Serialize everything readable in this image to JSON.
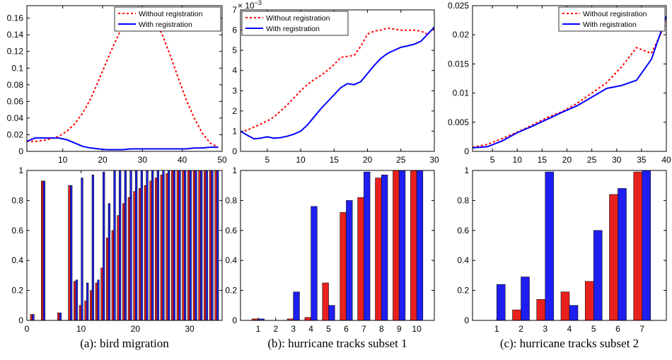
{
  "chart_data": [
    {
      "type": "line",
      "legend": "upper right",
      "xlim": [
        1,
        50
      ],
      "xticks": [
        10,
        20,
        30,
        40,
        50
      ],
      "ylim": [
        0,
        0.175
      ],
      "yticks": [
        0,
        0.02,
        0.04,
        0.06,
        0.08,
        0.1,
        0.12,
        0.14,
        0.16
      ],
      "x": [
        1,
        3,
        5,
        7,
        9,
        11,
        13,
        15,
        17,
        19,
        21,
        23,
        25,
        27,
        29,
        31,
        33,
        35,
        37,
        39,
        41,
        43,
        45,
        47,
        49
      ],
      "series": [
        {
          "name": "Without registration",
          "color": "#ff0000",
          "style": "dotted",
          "values": [
            0.012,
            0.012,
            0.013,
            0.015,
            0.018,
            0.024,
            0.033,
            0.046,
            0.063,
            0.085,
            0.108,
            0.13,
            0.15,
            0.165,
            0.173,
            0.17,
            0.16,
            0.14,
            0.115,
            0.088,
            0.062,
            0.04,
            0.022,
            0.01,
            0.005
          ]
        },
        {
          "name": "With registration",
          "color": "#0000ff",
          "style": "solid",
          "values": [
            0.012,
            0.016,
            0.016,
            0.016,
            0.016,
            0.014,
            0.01,
            0.006,
            0.004,
            0.003,
            0.002,
            0.002,
            0.002,
            0.003,
            0.003,
            0.003,
            0.003,
            0.003,
            0.003,
            0.003,
            0.003,
            0.004,
            0.004,
            0.005,
            0.005
          ]
        }
      ]
    },
    {
      "type": "line",
      "legend": "upper left",
      "y_multiplier": {
        "base": "× 10",
        "exponent": "−3"
      },
      "xlim": [
        1,
        30
      ],
      "xticks": [
        5,
        10,
        15,
        20,
        25,
        30
      ],
      "ylim": [
        0,
        7
      ],
      "yticks": [
        0,
        1,
        2,
        3,
        4,
        5,
        6,
        7
      ],
      "x": [
        1,
        2,
        3,
        4,
        5,
        6,
        7,
        8,
        9,
        10,
        11,
        12,
        13,
        14,
        15,
        16,
        17,
        18,
        19,
        20,
        21,
        22,
        23,
        24,
        25,
        26,
        27,
        28,
        29,
        30
      ],
      "series": [
        {
          "name": "Without registration",
          "color": "#ff0000",
          "style": "dotted",
          "values": [
            0.95,
            1.05,
            1.2,
            1.35,
            1.5,
            1.7,
            2.0,
            2.3,
            2.65,
            3.0,
            3.3,
            3.55,
            3.75,
            4.0,
            4.3,
            4.65,
            4.7,
            4.75,
            5.2,
            5.8,
            5.95,
            6.0,
            6.1,
            6.05,
            6.0,
            6.0,
            6.0,
            5.95,
            5.8,
            6.1
          ]
        },
        {
          "name": "With registration",
          "color": "#0000ff",
          "style": "solid",
          "values": [
            1.0,
            0.8,
            0.62,
            0.65,
            0.72,
            0.65,
            0.68,
            0.75,
            0.85,
            1.0,
            1.3,
            1.7,
            2.1,
            2.45,
            2.8,
            3.15,
            3.35,
            3.3,
            3.45,
            3.85,
            4.25,
            4.6,
            4.85,
            5.0,
            5.15,
            5.22,
            5.3,
            5.45,
            5.8,
            6.15
          ]
        }
      ]
    },
    {
      "type": "line",
      "legend": "upper right",
      "xlim": [
        1,
        40
      ],
      "xticks": [
        5,
        10,
        15,
        20,
        25,
        30,
        35,
        40
      ],
      "ylim": [
        0,
        0.025
      ],
      "yticks": [
        0,
        0.005,
        0.01,
        0.015,
        0.02,
        0.025
      ],
      "x": [
        1,
        4,
        7,
        10,
        13,
        16,
        19,
        22,
        25,
        28,
        31,
        34,
        37,
        40
      ],
      "series": [
        {
          "name": "Without registration",
          "color": "#ff0000",
          "style": "dotted",
          "values": [
            0.0007,
            0.0012,
            0.0022,
            0.0033,
            0.0045,
            0.0058,
            0.0068,
            0.0082,
            0.01,
            0.0118,
            0.0145,
            0.0178,
            0.0168,
            0.0222
          ]
        },
        {
          "name": "With registration",
          "color": "#0000ff",
          "style": "solid",
          "values": [
            0.0006,
            0.0008,
            0.0018,
            0.0032,
            0.0043,
            0.0055,
            0.0067,
            0.0078,
            0.0093,
            0.0108,
            0.0113,
            0.0122,
            0.0158,
            0.0232
          ]
        }
      ]
    },
    {
      "type": "bar",
      "caption": "(a): bird migration",
      "xlim": [
        0,
        36
      ],
      "xticks": [
        0,
        10,
        20,
        30
      ],
      "ylim": [
        0,
        1
      ],
      "yticks": [
        0,
        0.2,
        0.4,
        0.6,
        0.8,
        1
      ],
      "x": [
        1,
        2,
        3,
        4,
        5,
        6,
        7,
        8,
        9,
        10,
        11,
        12,
        13,
        14,
        15,
        16,
        17,
        18,
        19,
        20,
        21,
        22,
        23,
        24,
        25,
        26,
        27,
        28,
        29,
        30,
        31,
        32,
        33,
        34,
        35
      ],
      "series": [
        {
          "color": "#e8201e",
          "values": [
            0.04,
            0,
            0.93,
            0,
            0,
            0.05,
            0,
            0.9,
            0.26,
            0.1,
            0.13,
            0.2,
            0.25,
            0.35,
            0.55,
            0.6,
            0.7,
            0.78,
            0.82,
            0.86,
            0.88,
            0.9,
            0.93,
            0.95,
            0.97,
            0.98,
            1,
            1,
            1,
            1,
            1,
            1,
            1,
            1,
            1
          ]
        },
        {
          "color": "#1e1ef0",
          "values": [
            0.04,
            0,
            0.93,
            0,
            0,
            0.05,
            0,
            0.9,
            0.27,
            0.95,
            0.25,
            0.97,
            0.27,
            0.99,
            0.78,
            1,
            1,
            1,
            1,
            1,
            1,
            1,
            1,
            1,
            1,
            1,
            1,
            1,
            1,
            1,
            1,
            1,
            1,
            1,
            1
          ]
        }
      ]
    },
    {
      "type": "bar",
      "caption": "(b): hurricane tracks subset 1",
      "ylim": [
        0,
        1
      ],
      "yticks": [
        0,
        0.2,
        0.4,
        0.6,
        0.8,
        1
      ],
      "categories": [
        "1",
        "2",
        "3",
        "4",
        "5",
        "6",
        "7",
        "8",
        "9",
        "10"
      ],
      "series": [
        {
          "color": "#e8201e",
          "values": [
            0.01,
            0,
            0.01,
            0.02,
            0.25,
            0.72,
            0.82,
            0.95,
            1,
            1
          ]
        },
        {
          "color": "#1e1ef0",
          "values": [
            0.01,
            0,
            0.19,
            0.76,
            0.1,
            0.8,
            0.99,
            0.97,
            1,
            1
          ]
        }
      ]
    },
    {
      "type": "bar",
      "caption": "(c): hurricane tracks subset 2",
      "ylim": [
        0,
        1
      ],
      "yticks": [
        0,
        0.2,
        0.4,
        0.6,
        0.8,
        1
      ],
      "categories": [
        "1",
        "2",
        "3",
        "4",
        "5",
        "6",
        "7"
      ],
      "series": [
        {
          "color": "#e8201e",
          "values": [
            0,
            0.07,
            0.14,
            0.19,
            0.26,
            0.84,
            0.99
          ]
        },
        {
          "color": "#1e1ef0",
          "values": [
            0.24,
            0.29,
            0.99,
            0.1,
            0.6,
            0.88,
            1
          ]
        }
      ]
    }
  ]
}
